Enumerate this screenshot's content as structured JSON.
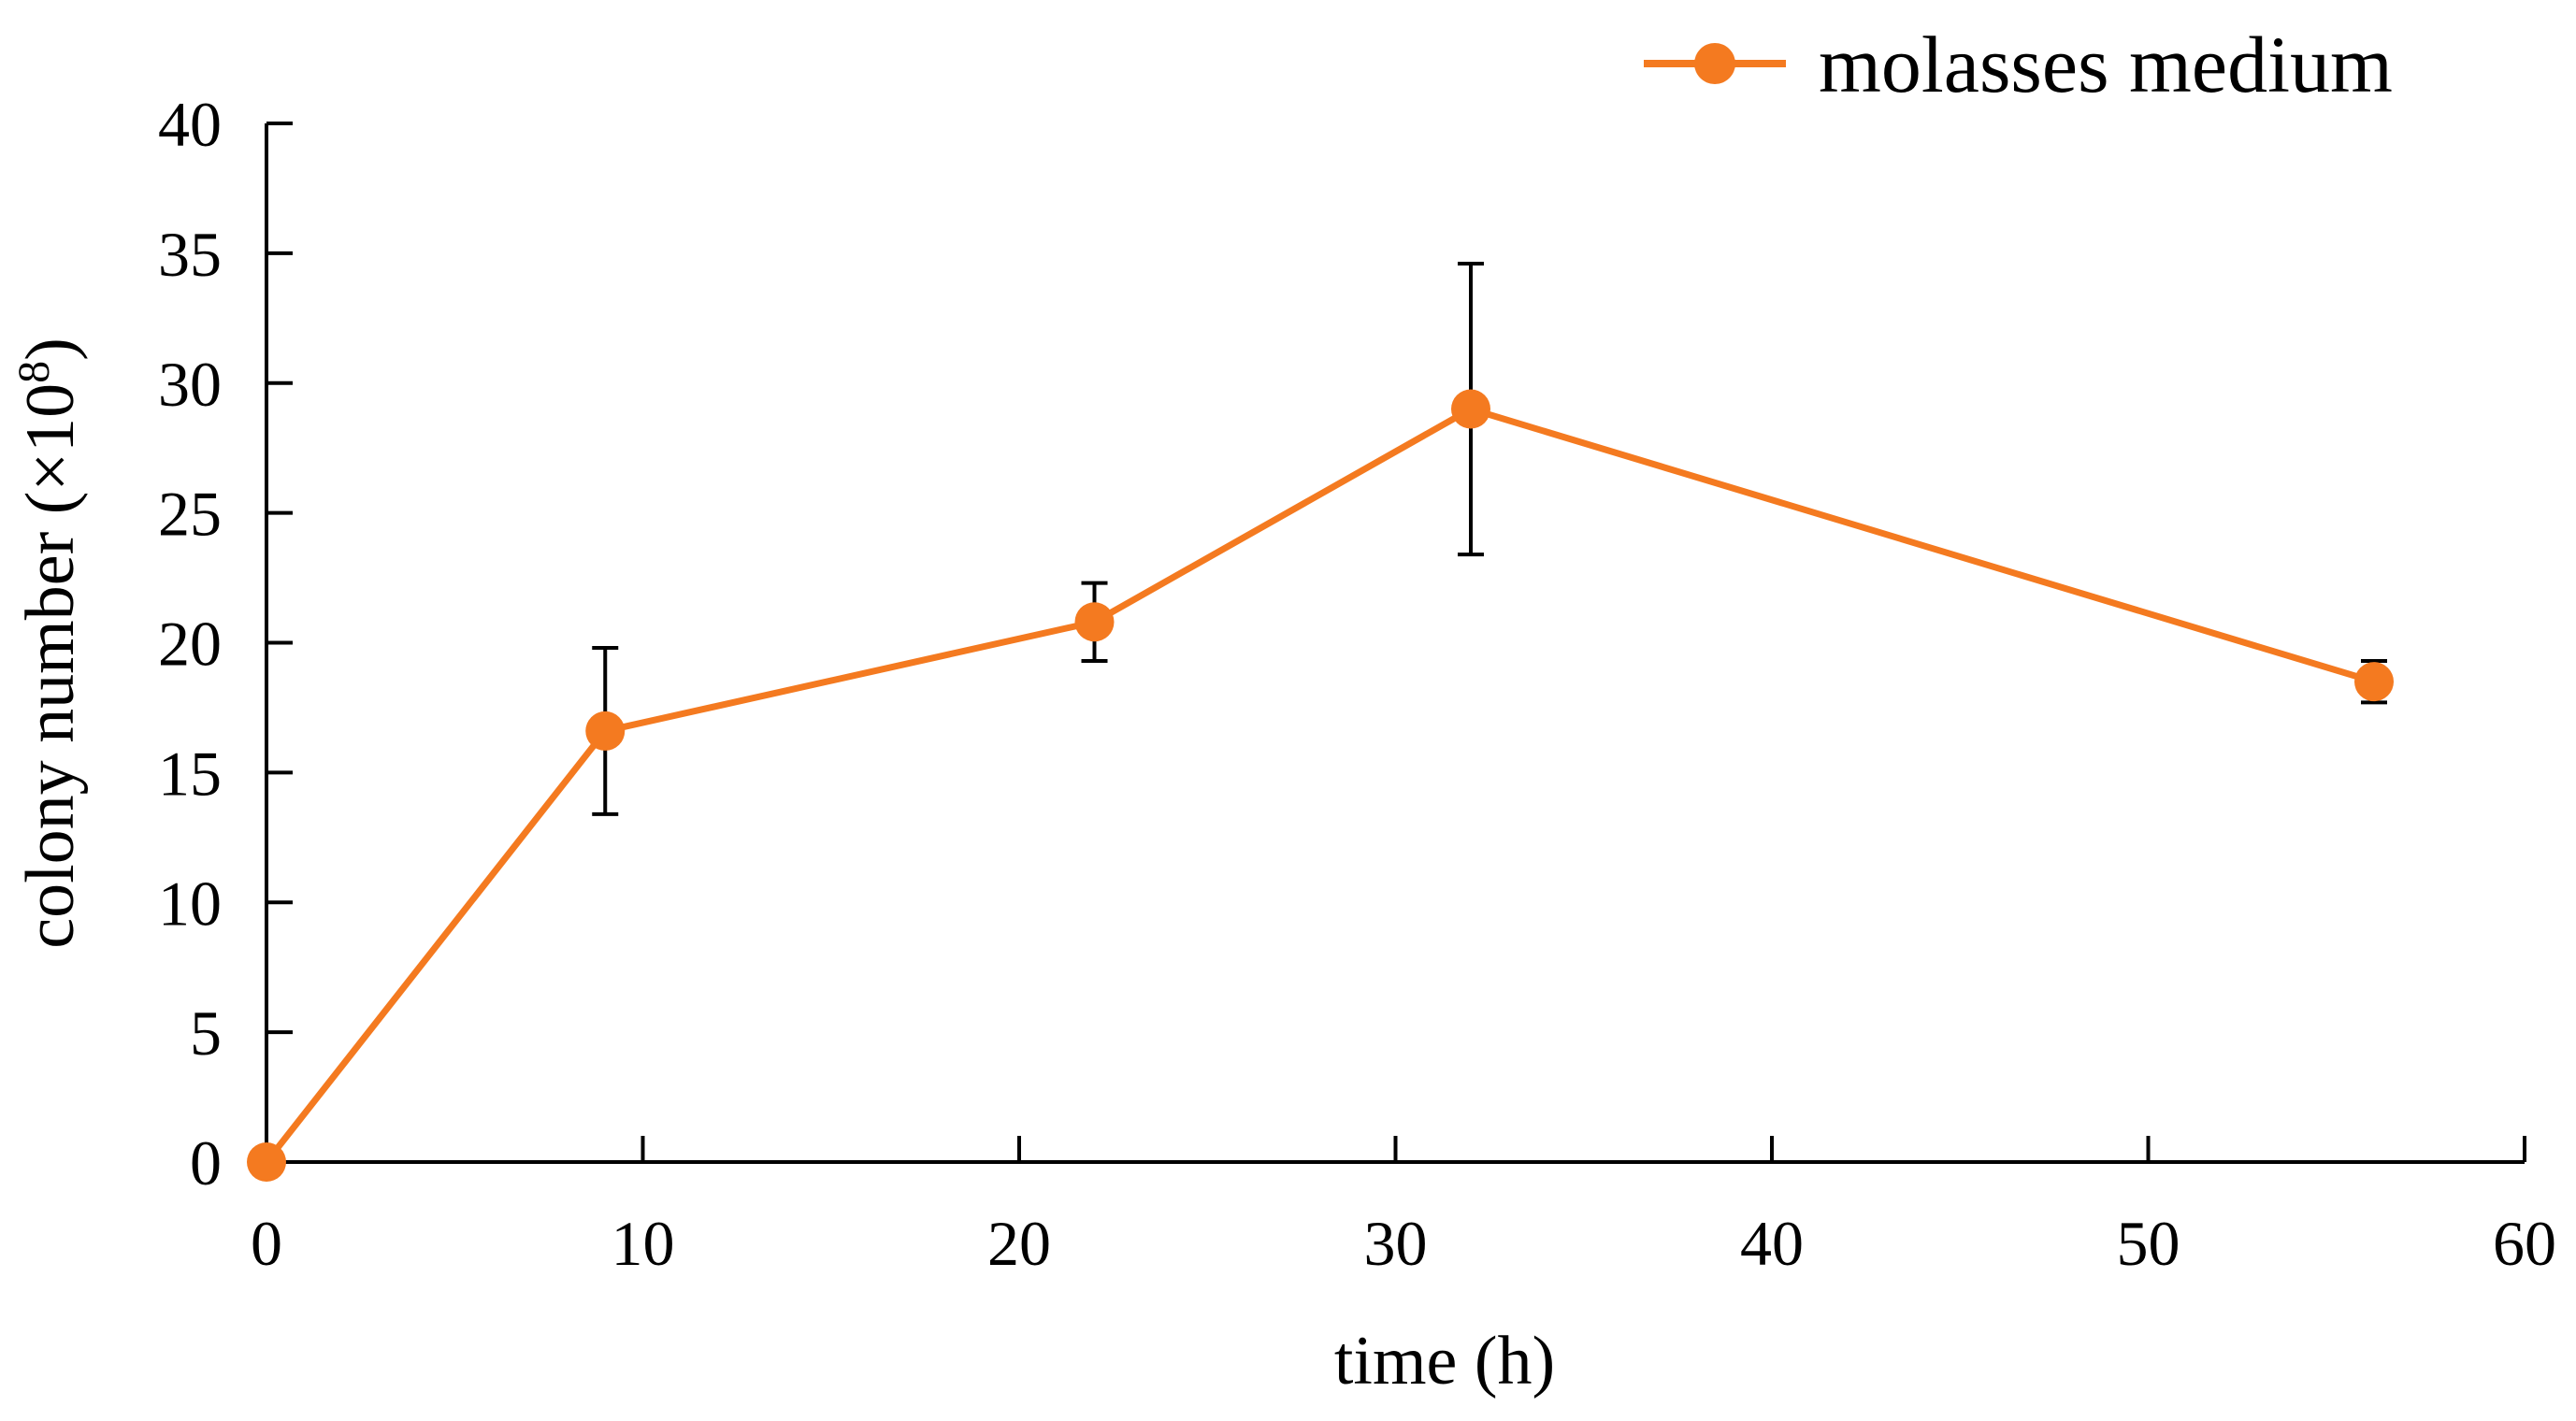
{
  "chart_data": {
    "type": "line",
    "title": "",
    "xlabel": "time (h)",
    "ylabel_prefix": "colony number (×10",
    "ylabel_exponent": "8",
    "ylabel_suffix": ")",
    "xlim": [
      0,
      60
    ],
    "ylim": [
      0,
      40
    ],
    "xticks": [
      0,
      10,
      20,
      30,
      40,
      50,
      60
    ],
    "yticks": [
      0,
      5,
      10,
      15,
      20,
      25,
      30,
      35,
      40
    ],
    "grid": false,
    "legend_position": "top-right",
    "series": [
      {
        "name": "molasses medium",
        "color": "#F47A20",
        "x": [
          0,
          9,
          22,
          32,
          56
        ],
        "y": [
          0,
          16.6,
          20.8,
          29.0,
          18.5
        ],
        "error": [
          0,
          3.2,
          1.5,
          5.6,
          0.8
        ]
      }
    ]
  }
}
